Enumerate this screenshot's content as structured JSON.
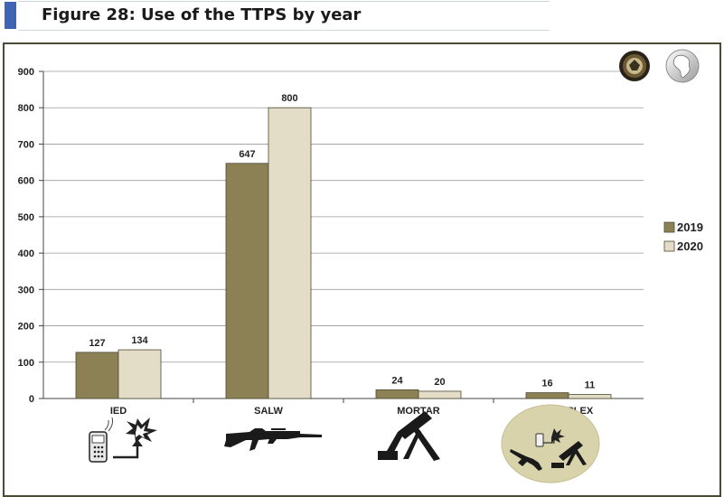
{
  "figure": {
    "title": "Figure 28: Use of the TTPS by year"
  },
  "colors": {
    "header_bar": "#3f64b3",
    "frame_border": "#4d4a34",
    "series_2019": "#8c8055",
    "series_2020": "#e3dcc6"
  },
  "icons": [
    "ied-phone-detonator-icon",
    "salw-rifle-icon",
    "mortar-icon",
    "complex-attack-icon",
    "logo-seal-icon",
    "africa-map-logo-icon"
  ],
  "chart_data": {
    "type": "bar",
    "categories": [
      "IED",
      "SALW",
      "MORTAR",
      "COMPLEX"
    ],
    "series": [
      {
        "name": "2019",
        "values": [
          127,
          647,
          24,
          16
        ],
        "color": "#8c8055"
      },
      {
        "name": "2020",
        "values": [
          134,
          800,
          20,
          11
        ],
        "color": "#e3dcc6"
      }
    ],
    "y_ticks": [
      0,
      100,
      200,
      300,
      400,
      500,
      600,
      700,
      800,
      900
    ],
    "ylim": [
      0,
      900
    ],
    "grid": true,
    "legend_position": "right",
    "data_labels": true
  }
}
